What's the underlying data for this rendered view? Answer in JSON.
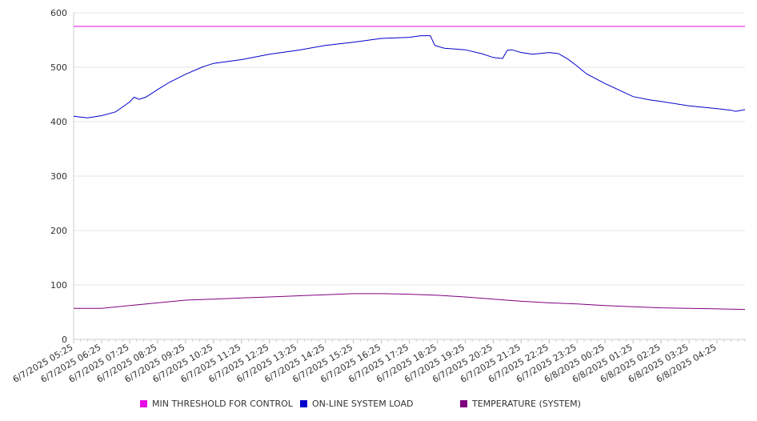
{
  "chart_data": {
    "type": "line",
    "title": "",
    "xlabel": "",
    "ylabel": "",
    "ylim": [
      0,
      600
    ],
    "yticks": [
      "0",
      "100",
      "200",
      "300",
      "400",
      "500",
      "600"
    ],
    "xtick_labels": [
      "6/7/2025 05:25",
      "6/7/2025 06:25",
      "6/7/2025 07:25",
      "6/7/2025 08:25",
      "6/7/2025 09:25",
      "6/7/2025 10:25",
      "6/7/2025 11:25",
      "6/7/2025 12:25",
      "6/7/2025 13:25",
      "6/7/2025 14:25",
      "6/7/2025 15:25",
      "6/7/2025 16:25",
      "6/7/2025 17:25",
      "6/7/2025 18:25",
      "6/7/2025 19:25",
      "6/7/2025 20:25",
      "6/7/2025 21:25",
      "6/7/2025 22:25",
      "6/7/2025 23:25",
      "6/8/2025 00:25",
      "6/8/2025 01:25",
      "6/8/2025 02:25",
      "6/8/2025 03:25",
      "6/8/2025 04:25"
    ],
    "x_range": [
      "6/7/2025 05:25",
      "6/8/2025 05:25"
    ],
    "grid": true,
    "legend_position": "bottom",
    "series": [
      {
        "name": "MIN THRESHOLD FOR CONTROL",
        "color": "#e60be6",
        "points": [
          [
            "6/7/2025 05:25",
            575
          ],
          [
            "6/8/2025 05:25",
            575
          ]
        ]
      },
      {
        "name": "ON-LINE SYSTEM LOAD",
        "color": "#0000cc",
        "points": [
          [
            "6/7/2025 05:25",
            410
          ],
          [
            "6/7/2025 05:55",
            407
          ],
          [
            "6/7/2025 06:25",
            411
          ],
          [
            "6/7/2025 06:55",
            418
          ],
          [
            "6/7/2025 07:10",
            427
          ],
          [
            "6/7/2025 07:25",
            436
          ],
          [
            "6/7/2025 07:35",
            445
          ],
          [
            "6/7/2025 07:45",
            441
          ],
          [
            "6/7/2025 08:00",
            445
          ],
          [
            "6/7/2025 08:25",
            459
          ],
          [
            "6/7/2025 08:50",
            472
          ],
          [
            "6/7/2025 09:25",
            487
          ],
          [
            "6/7/2025 10:00",
            500
          ],
          [
            "6/7/2025 10:25",
            507
          ],
          [
            "6/7/2025 11:25",
            514
          ],
          [
            "6/7/2025 12:25",
            524
          ],
          [
            "6/7/2025 13:25",
            531
          ],
          [
            "6/7/2025 14:25",
            540
          ],
          [
            "6/7/2025 15:25",
            546
          ],
          [
            "6/7/2025 16:25",
            553
          ],
          [
            "6/7/2025 17:25",
            555
          ],
          [
            "6/7/2025 17:50",
            558
          ],
          [
            "6/7/2025 18:10",
            558
          ],
          [
            "6/7/2025 18:20",
            540
          ],
          [
            "6/7/2025 18:40",
            535
          ],
          [
            "6/7/2025 19:25",
            532
          ],
          [
            "6/7/2025 20:00",
            525
          ],
          [
            "6/7/2025 20:25",
            518
          ],
          [
            "6/7/2025 20:45",
            516
          ],
          [
            "6/7/2025 20:55",
            531
          ],
          [
            "6/7/2025 21:05",
            532
          ],
          [
            "6/7/2025 21:25",
            527
          ],
          [
            "6/7/2025 21:50",
            524
          ],
          [
            "6/7/2025 22:25",
            527
          ],
          [
            "6/7/2025 22:45",
            525
          ],
          [
            "6/7/2025 23:05",
            515
          ],
          [
            "6/7/2025 23:25",
            502
          ],
          [
            "6/7/2025 23:45",
            488
          ],
          [
            "6/8/2025 00:25",
            470
          ],
          [
            "6/8/2025 01:00",
            456
          ],
          [
            "6/8/2025 01:25",
            446
          ],
          [
            "6/8/2025 02:00",
            440
          ],
          [
            "6/8/2025 02:25",
            437
          ],
          [
            "6/8/2025 03:25",
            429
          ],
          [
            "6/8/2025 04:25",
            424
          ],
          [
            "6/8/2025 04:55",
            421
          ],
          [
            "6/8/2025 05:05",
            419
          ],
          [
            "6/8/2025 05:25",
            422
          ]
        ]
      },
      {
        "name": "TEMPERATURE (SYSTEM)",
        "color": "#800080",
        "points": [
          [
            "6/7/2025 05:25",
            57
          ],
          [
            "6/7/2025 06:25",
            57
          ],
          [
            "6/7/2025 07:25",
            62
          ],
          [
            "6/7/2025 08:25",
            67
          ],
          [
            "6/7/2025 09:25",
            72
          ],
          [
            "6/7/2025 10:25",
            74
          ],
          [
            "6/7/2025 11:25",
            76
          ],
          [
            "6/7/2025 12:25",
            78
          ],
          [
            "6/7/2025 13:25",
            80
          ],
          [
            "6/7/2025 14:25",
            82
          ],
          [
            "6/7/2025 15:25",
            84
          ],
          [
            "6/7/2025 16:25",
            84
          ],
          [
            "6/7/2025 17:25",
            83
          ],
          [
            "6/7/2025 18:25",
            81
          ],
          [
            "6/7/2025 19:25",
            78
          ],
          [
            "6/7/2025 20:25",
            74
          ],
          [
            "6/7/2025 21:25",
            70
          ],
          [
            "6/7/2025 22:25",
            67
          ],
          [
            "6/7/2025 23:25",
            65
          ],
          [
            "6/8/2025 00:25",
            62
          ],
          [
            "6/8/2025 01:25",
            60
          ],
          [
            "6/8/2025 02:25",
            58
          ],
          [
            "6/8/2025 03:25",
            57
          ],
          [
            "6/8/2025 04:25",
            56
          ],
          [
            "6/8/2025 05:25",
            55
          ]
        ]
      }
    ]
  }
}
